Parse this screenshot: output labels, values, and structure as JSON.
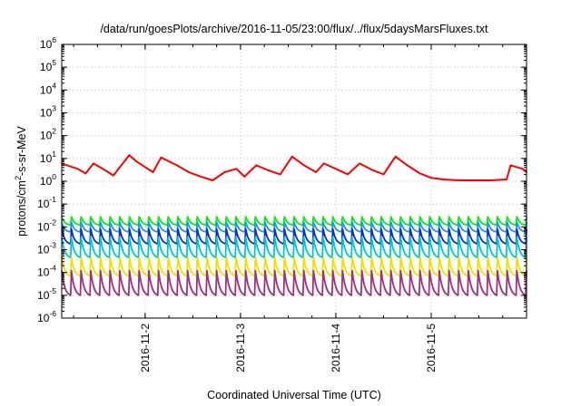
{
  "chart_data": {
    "type": "line",
    "title": "/data/run/goesPlots/archive/2016-11-05/23:00/flux/../flux/5daysMarsFluxes.txt",
    "xlabel": "Coordinated Universal Time (UTC)",
    "ylabel": {
      "base": "protons/cm",
      "sup": "2",
      "rest": "-s-sr-MeV"
    },
    "y_scale": "log",
    "ylim": [
      1e-06,
      1000000.0
    ],
    "xlim": [
      "2016-11-01T03:00",
      "2016-11-06T00:00"
    ],
    "grid": true,
    "legend": "none",
    "x_ticks": [
      "2016-11-2",
      "2016-11-3",
      "2016-11-4",
      "2016-11-5"
    ],
    "y_ticks": [
      {
        "base": "10",
        "exp": "-6"
      },
      {
        "base": "10",
        "exp": "-5"
      },
      {
        "base": "10",
        "exp": "-4"
      },
      {
        "base": "10",
        "exp": "-3"
      },
      {
        "base": "10",
        "exp": "-2"
      },
      {
        "base": "10",
        "exp": "-1"
      },
      {
        "base": "10",
        "exp": "0"
      },
      {
        "base": "10",
        "exp": "1"
      },
      {
        "base": "10",
        "exp": "2"
      },
      {
        "base": "10",
        "exp": "3"
      },
      {
        "base": "10",
        "exp": "4"
      },
      {
        "base": "10",
        "exp": "5"
      },
      {
        "base": "10",
        "exp": "6"
      }
    ],
    "series": [
      {
        "color": "#ff0000",
        "x": [
          "2016-11-01T03:00",
          "2016-11-01T07:00",
          "2016-11-01T09:00",
          "2016-11-01T11:00",
          "2016-11-01T14:00",
          "2016-11-01T16:00",
          "2016-11-01T20:00",
          "2016-11-01T22:00",
          "2016-11-02T02:00",
          "2016-11-02T04:00",
          "2016-11-02T08:00",
          "2016-11-02T11:00",
          "2016-11-02T14:00",
          "2016-11-02T17:00",
          "2016-11-02T20:00",
          "2016-11-02T23:00",
          "2016-11-03T01:00",
          "2016-11-03T04:00",
          "2016-11-03T07:00",
          "2016-11-03T10:00",
          "2016-11-03T13:00",
          "2016-11-03T16:00",
          "2016-11-03T19:00",
          "2016-11-03T21:00",
          "2016-11-04T00:00",
          "2016-11-04T03:00",
          "2016-11-04T06:00",
          "2016-11-04T09:00",
          "2016-11-04T12:00",
          "2016-11-04T15:00",
          "2016-11-04T18:00",
          "2016-11-04T21:00",
          "2016-11-05T00:00",
          "2016-11-05T03:00",
          "2016-11-05T07:00",
          "2016-11-05T11:00",
          "2016-11-05T15:00",
          "2016-11-05T19:00",
          "2016-11-05T20:00",
          "2016-11-05T23:00",
          "2016-11-06T00:00"
        ],
        "y": [
          6,
          3.5,
          2.2,
          6,
          3,
          1.8,
          14,
          7,
          2.5,
          11,
          5,
          2.5,
          1.6,
          1.1,
          2.5,
          3.5,
          1.6,
          5,
          3,
          2,
          12,
          5,
          2.5,
          6,
          3.5,
          2,
          6,
          3.2,
          2,
          12,
          5,
          2.3,
          1.4,
          1.2,
          1.1,
          1.1,
          1.1,
          1.2,
          5,
          3.5,
          2.5
        ]
      }
    ],
    "decay_series": {
      "cycles": 48,
      "bands": [
        {
          "color": "#00ee00",
          "top": 0.028,
          "bottom": 0.012
        },
        {
          "color": "#1e90ff",
          "top": 0.016,
          "bottom": 0.006
        },
        {
          "color": "#0a2fd0",
          "top": 0.008,
          "bottom": 0.0018
        },
        {
          "color": "#00c8c8",
          "top": 0.0035,
          "bottom": 0.00045
        },
        {
          "color": "#f0e000",
          "top": 0.00045,
          "bottom": 7e-05
        },
        {
          "color": "#a0307a",
          "top": 0.00012,
          "bottom": 1e-05
        }
      ]
    }
  }
}
